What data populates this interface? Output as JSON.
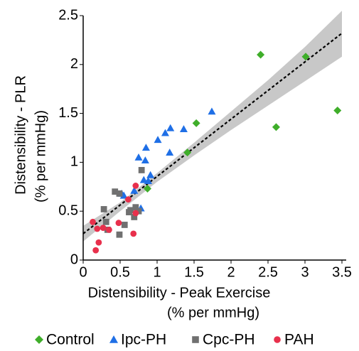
{
  "chart_data": {
    "type": "scatter",
    "xlabel": [
      "Distensibility - Peak Exercise",
      "(% per mmHg)"
    ],
    "ylabel": [
      "Distensibility - PLR",
      "(% per mmHg)"
    ],
    "xlim": [
      0,
      3.5
    ],
    "ylim": [
      0,
      2.5
    ],
    "xticks": [
      0,
      0.5,
      1,
      1.5,
      2,
      2.5,
      3,
      3.5
    ],
    "yticks": [
      0,
      0.5,
      1,
      1.5,
      2,
      2.5
    ],
    "fit": {
      "x": [
        0,
        3.5
      ],
      "y": [
        0.27,
        2.32
      ],
      "color": "#000000"
    },
    "band": {
      "x": [
        0,
        0.5,
        1,
        1.5,
        2,
        2.5,
        3,
        3.5
      ],
      "lower": [
        0.19,
        0.5,
        0.8,
        1.07,
        1.33,
        1.58,
        1.83,
        2.08
      ],
      "upper": [
        0.35,
        0.59,
        0.89,
        1.2,
        1.52,
        1.84,
        2.18,
        2.55
      ],
      "color": "#c8c8c8"
    },
    "series": [
      {
        "name": "Control",
        "color": "#3fae2a",
        "marker": "diamond",
        "x": [
          2.4,
          3.01,
          3.44,
          2.61,
          1.53,
          1.41,
          0.87
        ],
        "values": [
          2.1,
          2.08,
          1.53,
          1.36,
          1.4,
          1.1,
          0.73
        ]
      },
      {
        "name": "Ipc-PH",
        "color": "#1f6fe6",
        "marker": "triangle",
        "x": [
          1.74,
          1.36,
          1.18,
          1.11,
          1.01,
          1.17,
          0.85,
          0.84,
          0.75,
          0.91,
          0.88,
          0.82,
          0.69,
          0.52,
          0.55,
          0.78
        ],
        "values": [
          1.52,
          1.34,
          1.35,
          1.3,
          1.23,
          1.1,
          1.15,
          1.02,
          1.05,
          0.87,
          0.81,
          0.82,
          0.71,
          0.68,
          0.66,
          0.53
        ]
      },
      {
        "name": "Cpc-PH",
        "color": "#707070",
        "marker": "square",
        "x": [
          0.79,
          0.43,
          0.49,
          0.28,
          0.71,
          0.64,
          0.62,
          0.75,
          0.69,
          0.31,
          0.56,
          0.33,
          0.49
        ],
        "values": [
          0.92,
          0.7,
          0.68,
          0.52,
          0.54,
          0.51,
          0.49,
          0.5,
          0.44,
          0.39,
          0.36,
          0.31,
          0.26
        ]
      },
      {
        "name": "PAH",
        "color": "#e8304c",
        "marker": "circle",
        "x": [
          0.71,
          0.13,
          0.19,
          0.27,
          0.35,
          0.48,
          0.68,
          0.71,
          0.21,
          0.17,
          0.61
        ],
        "values": [
          0.76,
          0.39,
          0.32,
          0.33,
          0.31,
          0.38,
          0.27,
          0.48,
          0.18,
          0.1,
          0.62
        ]
      }
    ]
  }
}
